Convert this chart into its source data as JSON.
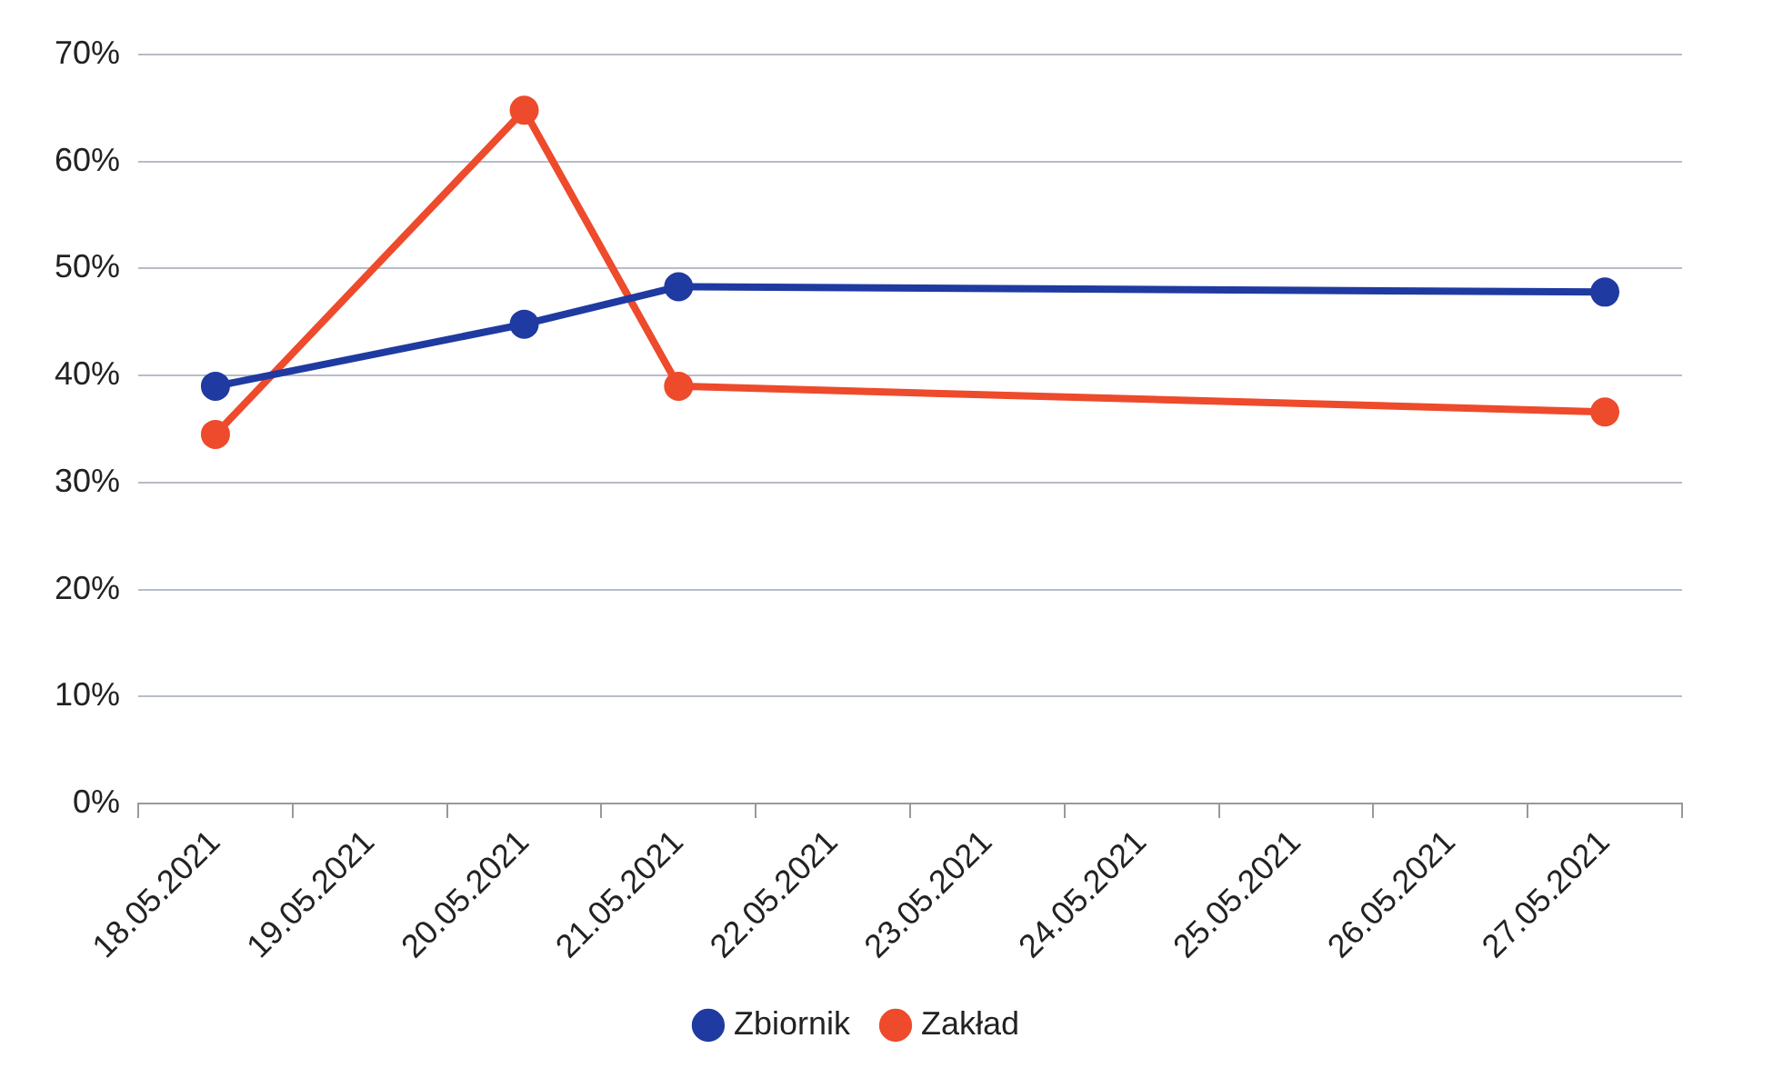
{
  "chart_data": {
    "type": "line",
    "categories": [
      "18.05.2021",
      "19.05.2021",
      "20.05.2021",
      "21.05.2021",
      "22.05.2021",
      "23.05.2021",
      "24.05.2021",
      "25.05.2021",
      "26.05.2021",
      "27.05.2021"
    ],
    "series": [
      {
        "name": "Zbiornik",
        "color": "#1f3aa0",
        "x": [
          "18.05.2021",
          "20.05.2021",
          "21.05.2021",
          "27.05.2021"
        ],
        "values": [
          39,
          44.8,
          48.3,
          47.8
        ]
      },
      {
        "name": "Zakład",
        "color": "#ee4a2c",
        "x": [
          "18.05.2021",
          "20.05.2021",
          "21.05.2021",
          "27.05.2021"
        ],
        "values": [
          34.5,
          64.8,
          39,
          36.6
        ]
      }
    ],
    "ylim": [
      0,
      70
    ],
    "yticks": [
      {
        "value": 0,
        "label": "0%"
      },
      {
        "value": 10,
        "label": "10%"
      },
      {
        "value": 20,
        "label": "20%"
      },
      {
        "value": 30,
        "label": "30%"
      },
      {
        "value": 40,
        "label": "40%"
      },
      {
        "value": 50,
        "label": "50%"
      },
      {
        "value": 60,
        "label": "60%"
      },
      {
        "value": 70,
        "label": "70%"
      }
    ],
    "grid": "y",
    "legend": "bottom",
    "marker": "circle",
    "line_style": "solid"
  }
}
